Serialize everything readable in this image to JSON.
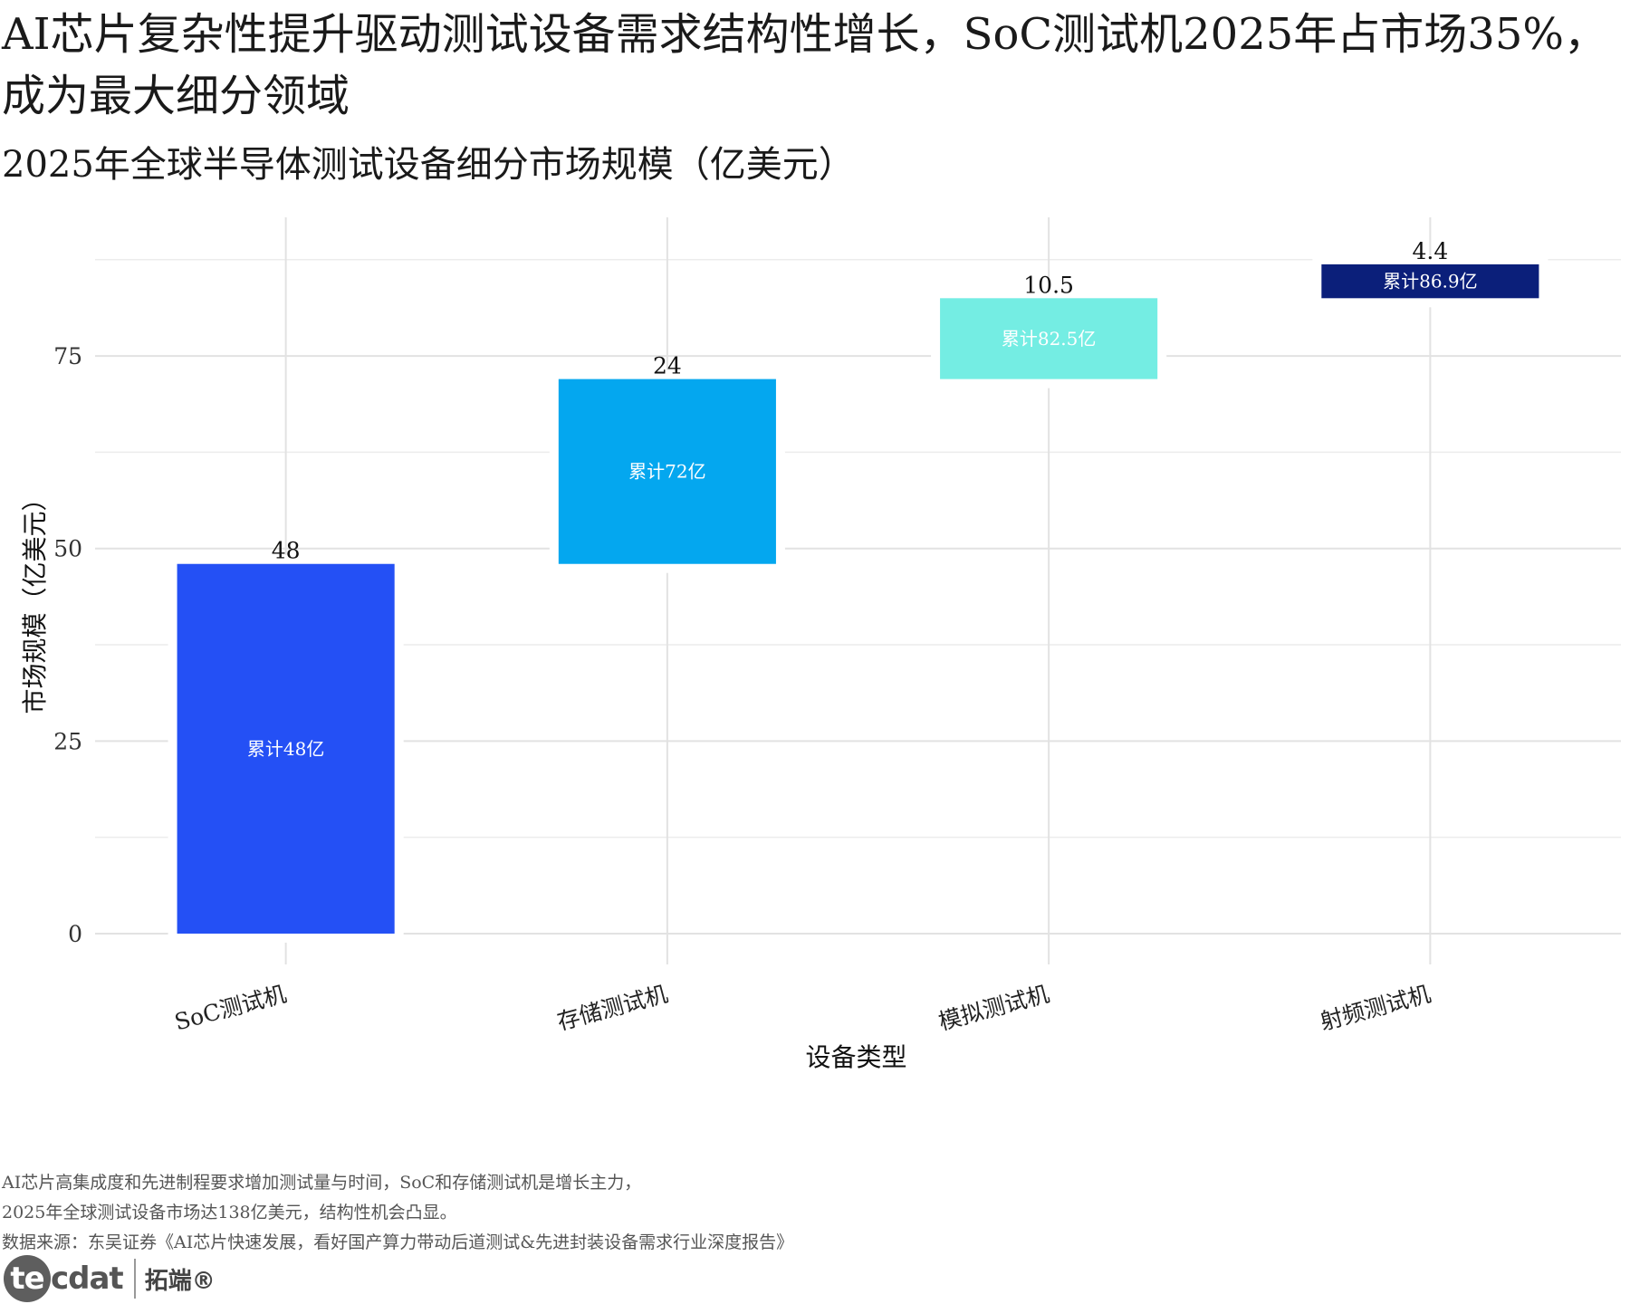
{
  "header": {
    "title": "AI芯片复杂性提升驱动测试设备需求结构性增长，SoC测试机2025年占市场35%，成为最大细分领域",
    "subtitle": "2025年全球半导体测试设备细分市场规模（亿美元）"
  },
  "chart_data": {
    "type": "waterfall",
    "xlabel": "设备类型",
    "ylabel": "市场规模（亿美元）",
    "ylim": [
      -4,
      93
    ],
    "yticks": [
      0,
      25,
      50,
      75
    ],
    "grid": true,
    "categories": [
      "SoC测试机",
      "存储测试机",
      "模拟测试机",
      "射频测试机"
    ],
    "values": [
      48,
      24,
      10.5,
      4.4
    ],
    "value_labels": [
      "48",
      "24",
      "10.5",
      "4.4"
    ],
    "cumulative": [
      48,
      72,
      82.5,
      86.9
    ],
    "cumulative_labels": [
      "累计48亿",
      "累计72亿",
      "累计82.5亿",
      "累计86.9亿"
    ],
    "colors": [
      "#2450f5",
      "#04a7ef",
      "#74ede3",
      "#0b1f7a"
    ]
  },
  "caption": {
    "line1": "AI芯片高集成度和先进制程要求增加测试量与时间，SoC和存储测试机是增长主力，",
    "line2": "2025年全球测试设备市场达138亿美元，结构性机会凸显。",
    "line3": "数据来源：东吴证券《AI芯片快速发展，看好国产算力带动后道测试&先进封装设备需求行业深度报告》"
  },
  "logo": {
    "mark": "tecdat",
    "text": "拓端®"
  }
}
